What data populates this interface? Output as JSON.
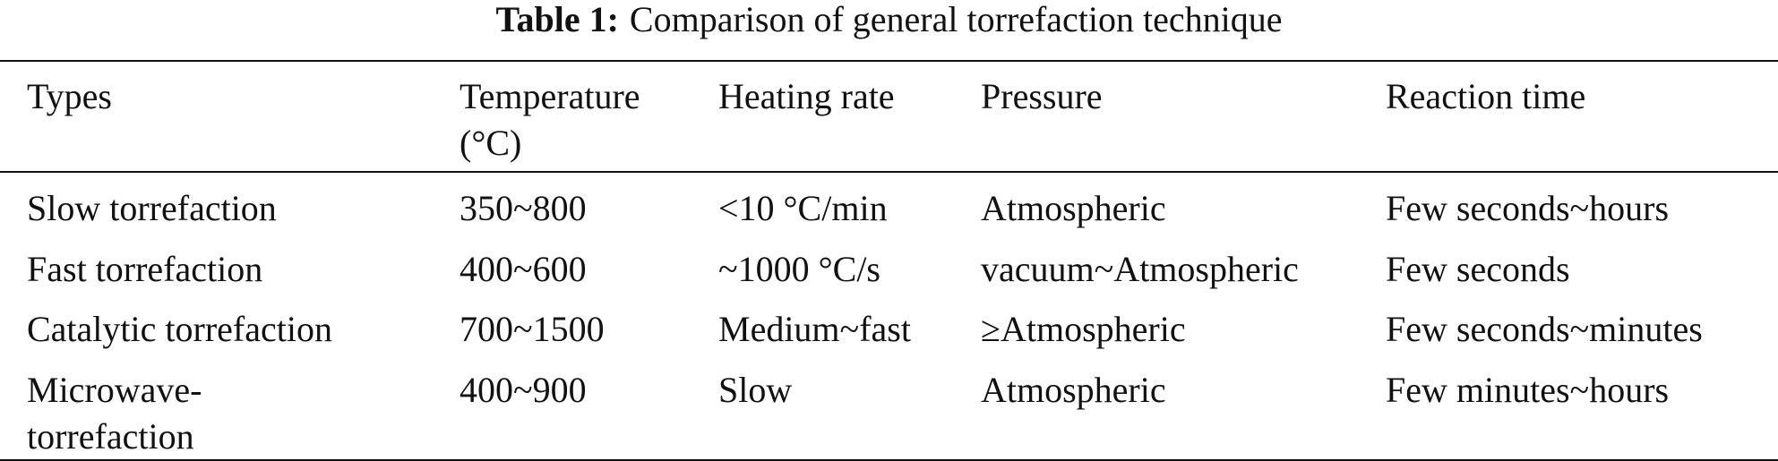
{
  "caption": {
    "label": "Table 1:",
    "text": "Comparison of general torrefaction technique"
  },
  "table": {
    "headers": [
      "Types",
      "Temperature (°C)",
      "Heating rate",
      "Pressure",
      "Reaction time"
    ],
    "rows": [
      [
        "Slow torrefaction",
        "350~800",
        "<10 °C/min",
        "Atmospheric",
        "Few seconds~hours"
      ],
      [
        "Fast torrefaction",
        "400~600",
        "~1000 °C/s",
        "vacuum~Atmospheric",
        "Few seconds"
      ],
      [
        "Catalytic torrefaction",
        "700~1500",
        "Medium~fast",
        "≥Atmospheric",
        "Few seconds~minutes"
      ],
      [
        "Microwave-torrefaction",
        "400~900",
        "Slow",
        "Atmospheric",
        "Few minutes~hours"
      ]
    ]
  }
}
